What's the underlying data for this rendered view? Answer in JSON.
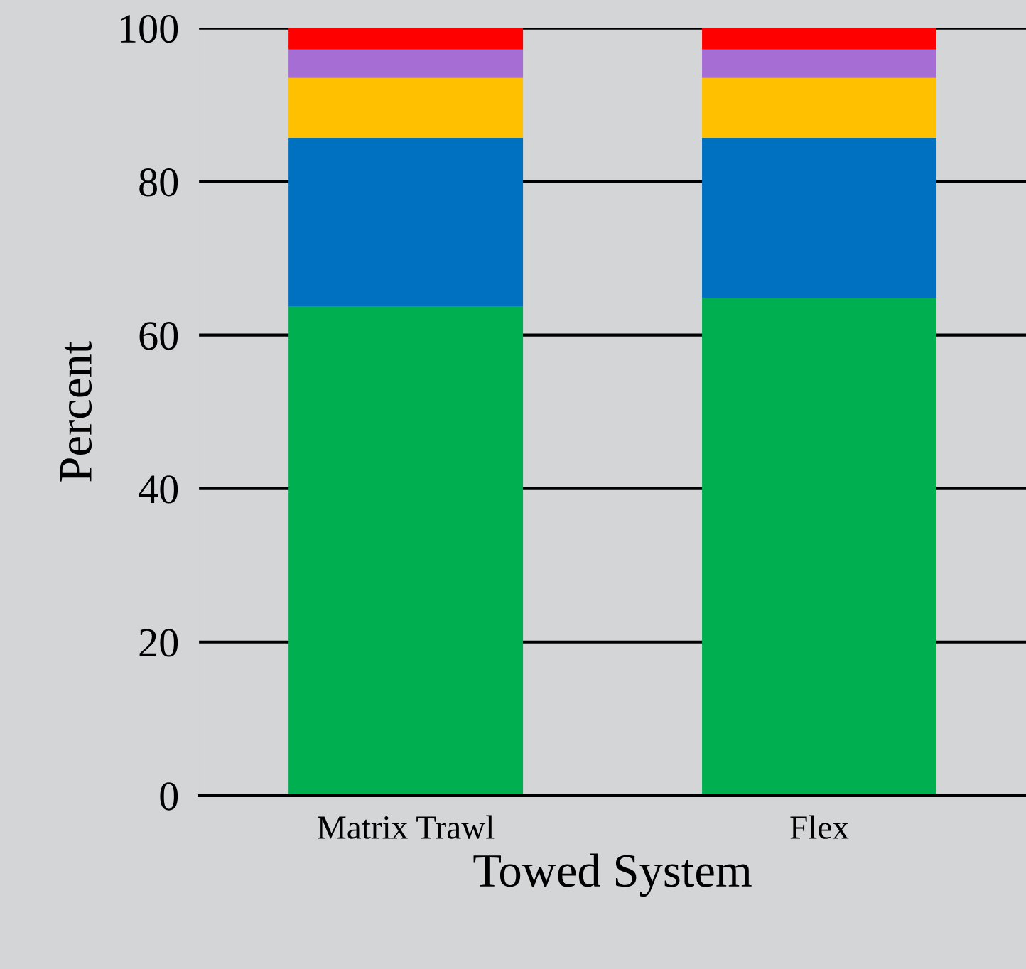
{
  "chart_data": {
    "type": "bar",
    "stacked": true,
    "xlabel": "Towed System",
    "ylabel": "Percent",
    "categories": [
      "Matrix Trawl",
      "Flex"
    ],
    "series": [
      {
        "color": "#00b050",
        "values": [
          63.7,
          64.8
        ]
      },
      {
        "color": "#0070c0",
        "values": [
          22.0,
          20.9
        ]
      },
      {
        "color": "#ffc000",
        "values": [
          7.8,
          7.8
        ]
      },
      {
        "color": "#a66dd4",
        "values": [
          3.7,
          3.7
        ]
      },
      {
        "color": "#ff0000",
        "values": [
          2.8,
          2.8
        ]
      }
    ],
    "ylim": [
      0,
      100
    ],
    "yticks": [
      0,
      20,
      40,
      60,
      80,
      100
    ],
    "grid": "y"
  }
}
